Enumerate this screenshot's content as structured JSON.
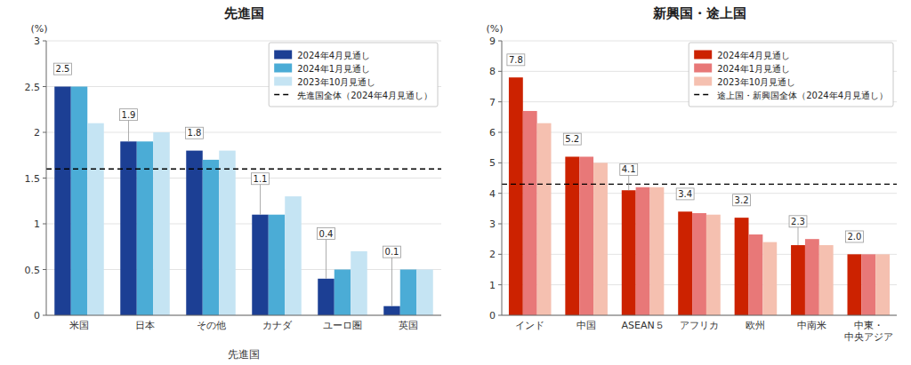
{
  "chart_data": [
    {
      "type": "bar",
      "title": "先進国",
      "xlabel": "先進国",
      "ylabel": "(%)",
      "categories": [
        "米国",
        "日本",
        "その他",
        "カナダ",
        "ユーロ圏",
        "英国"
      ],
      "series": [
        {
          "name": "2024年4月見通し",
          "color": "#1c3f94",
          "values": [
            2.5,
            1.9,
            1.8,
            1.1,
            0.4,
            0.1
          ],
          "data_labels": true
        },
        {
          "name": "2024年1月見通し",
          "color": "#4bacd6",
          "values": [
            2.5,
            1.9,
            1.7,
            1.1,
            0.5,
            0.5
          ]
        },
        {
          "name": "2023年10月見通し",
          "color": "#c5e4f3",
          "values": [
            2.1,
            2.0,
            1.8,
            1.3,
            0.7,
            0.5
          ]
        }
      ],
      "reference_line": {
        "name": "先進国全体（2024年4月見通し）",
        "value": 1.6,
        "color": "#000000",
        "line_style": "dashed"
      },
      "ylim": [
        0,
        3
      ],
      "yticks": [
        0,
        0.5,
        1,
        1.5,
        2,
        2.5,
        3
      ],
      "grid": true,
      "legend": "top-right"
    },
    {
      "type": "bar",
      "title": "新興国・途上国",
      "ylabel": "(%)",
      "categories": [
        "インド",
        "中国",
        "ASEAN５",
        "アフリカ",
        "欧州",
        "中南米",
        "中東・\n中央アジア"
      ],
      "series": [
        {
          "name": "2024年4月見通し",
          "color": "#cc2200",
          "values": [
            7.8,
            5.2,
            4.1,
            3.4,
            3.2,
            2.3,
            2.0
          ],
          "value_labels": [
            "7.8",
            "5.2",
            "4.1",
            "3.4",
            "3.2",
            "2.3",
            "2.0"
          ],
          "data_labels": true
        },
        {
          "name": "2024年1月見通し",
          "color": "#e87878",
          "values": [
            6.7,
            5.2,
            4.2,
            3.35,
            2.65,
            2.5,
            2.0
          ]
        },
        {
          "name": "2023年10月見通し",
          "color": "#f5c0b0",
          "values": [
            6.3,
            5.0,
            4.2,
            3.3,
            2.4,
            2.3,
            2.0
          ]
        }
      ],
      "reference_line": {
        "name": "途上国・新興国全体（2024年4月見通し）",
        "value": 4.3,
        "color": "#000000",
        "line_style": "dashed"
      },
      "ylim": [
        0,
        9
      ],
      "yticks": [
        0,
        1,
        2,
        3,
        4,
        5,
        6,
        7,
        8,
        9
      ],
      "grid": true,
      "legend": "top-right"
    }
  ]
}
